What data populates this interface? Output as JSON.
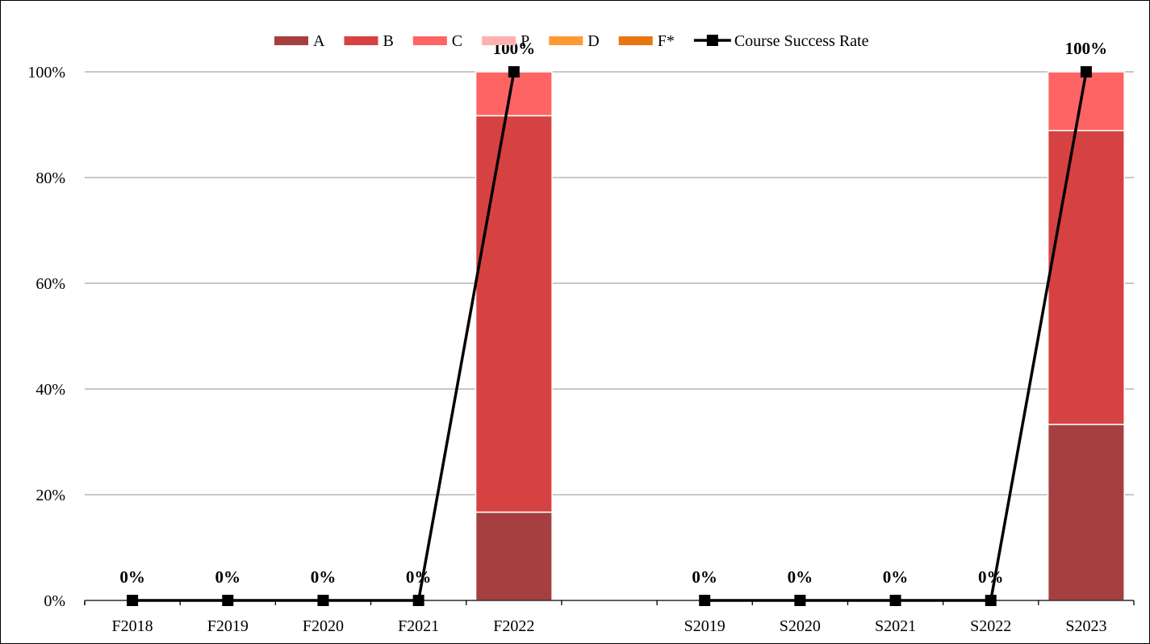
{
  "chart_data": {
    "type": "bar",
    "stacked": true,
    "categories": [
      "F2018",
      "F2019",
      "F2020",
      "F2021",
      "F2022",
      "",
      "S2019",
      "S2020",
      "S2021",
      "S2022",
      "S2023"
    ],
    "series": [
      {
        "name": "A",
        "color": "#A63F3F",
        "values": [
          0,
          0,
          0,
          0,
          16.7,
          null,
          0,
          0,
          0,
          0,
          33.3
        ]
      },
      {
        "name": "B",
        "color": "#D64242",
        "values": [
          0,
          0,
          0,
          0,
          75.0,
          null,
          0,
          0,
          0,
          0,
          55.6
        ]
      },
      {
        "name": "C",
        "color": "#FF6464",
        "values": [
          0,
          0,
          0,
          0,
          8.3,
          null,
          0,
          0,
          0,
          0,
          11.1
        ]
      },
      {
        "name": "P",
        "color": "#FFB0B0",
        "values": [
          0,
          0,
          0,
          0,
          0,
          null,
          0,
          0,
          0,
          0,
          0
        ]
      },
      {
        "name": "D",
        "color": "#FF9933",
        "values": [
          0,
          0,
          0,
          0,
          0,
          null,
          0,
          0,
          0,
          0,
          0
        ]
      },
      {
        "name": "F*",
        "color": "#E87711",
        "values": [
          0,
          0,
          0,
          0,
          0,
          null,
          0,
          0,
          0,
          0,
          0
        ]
      }
    ],
    "line": {
      "name": "Course Success Rate",
      "color": "#000000",
      "values": [
        0,
        0,
        0,
        0,
        100,
        null,
        0,
        0,
        0,
        0,
        100
      ],
      "labels": [
        "0%",
        "0%",
        "0%",
        "0%",
        "100%",
        "",
        "0%",
        "0%",
        "0%",
        "0%",
        "100%"
      ]
    },
    "yticks": [
      "0%",
      "20%",
      "40%",
      "60%",
      "80%",
      "100%"
    ],
    "ylim": [
      0,
      100
    ],
    "grid": true,
    "legend": "top"
  }
}
